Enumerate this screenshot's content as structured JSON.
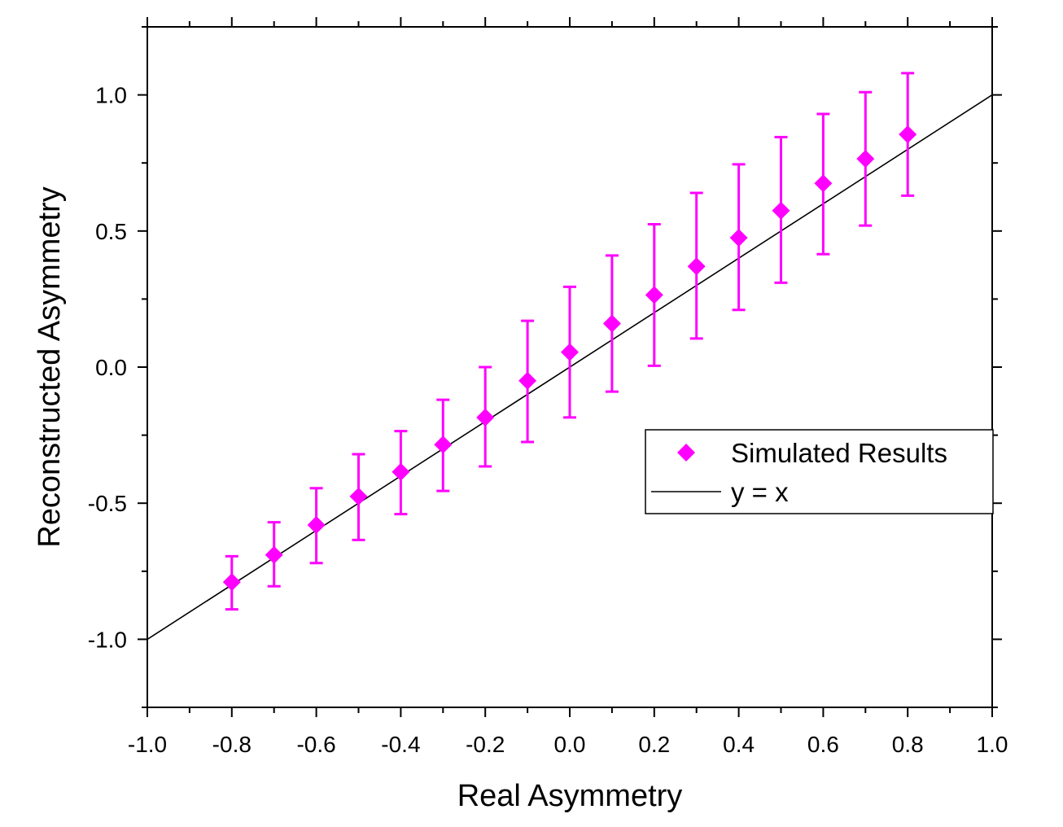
{
  "chart_data": {
    "type": "scatter",
    "title": "",
    "xlabel": "Real Asymmetry",
    "ylabel": "Reconstructed Asymmetry",
    "xlim": [
      -1.0,
      1.0
    ],
    "ylim": [
      -1.25,
      1.25
    ],
    "xticks": [
      -1.0,
      -0.8,
      -0.6,
      -0.4,
      -0.2,
      0.0,
      0.2,
      0.4,
      0.6,
      0.8,
      1.0
    ],
    "xtick_labels": [
      "-1.0",
      "-0.8",
      "-0.6",
      "-0.4",
      "-0.2",
      "0.0",
      "0.2",
      "0.4",
      "0.6",
      "0.8",
      "1.0"
    ],
    "yticks": [
      -1.0,
      -0.5,
      0.0,
      0.5,
      1.0
    ],
    "ytick_labels": [
      "-1.0",
      "-0.5",
      "0.0",
      "0.5",
      "1.0"
    ],
    "grid": false,
    "legend_position": "right",
    "series": [
      {
        "name": "Simulated Results",
        "kind": "scatter-errorbar",
        "marker": "diamond",
        "color": "#ff00ff",
        "x": [
          -0.8,
          -0.7,
          -0.6,
          -0.5,
          -0.4,
          -0.3,
          -0.2,
          -0.1,
          0.0,
          0.1,
          0.2,
          0.3,
          0.4,
          0.5,
          0.6,
          0.7,
          0.8
        ],
        "y": [
          -0.79,
          -0.69,
          -0.58,
          -0.475,
          -0.385,
          -0.285,
          -0.185,
          -0.05,
          0.055,
          0.16,
          0.265,
          0.37,
          0.475,
          0.575,
          0.675,
          0.765,
          0.855
        ],
        "err_low": [
          -0.89,
          -0.805,
          -0.72,
          -0.635,
          -0.54,
          -0.455,
          -0.365,
          -0.275,
          -0.185,
          -0.09,
          0.005,
          0.105,
          0.21,
          0.31,
          0.415,
          0.52,
          0.63
        ],
        "err_high": [
          -0.695,
          -0.57,
          -0.445,
          -0.32,
          -0.235,
          -0.12,
          0.0,
          0.17,
          0.295,
          0.41,
          0.525,
          0.64,
          0.745,
          0.845,
          0.93,
          1.01,
          1.08
        ]
      },
      {
        "name": "y = x",
        "kind": "line",
        "color": "#000000",
        "x": [
          -1.0,
          1.0
        ],
        "y": [
          -1.0,
          1.0
        ]
      }
    ]
  }
}
